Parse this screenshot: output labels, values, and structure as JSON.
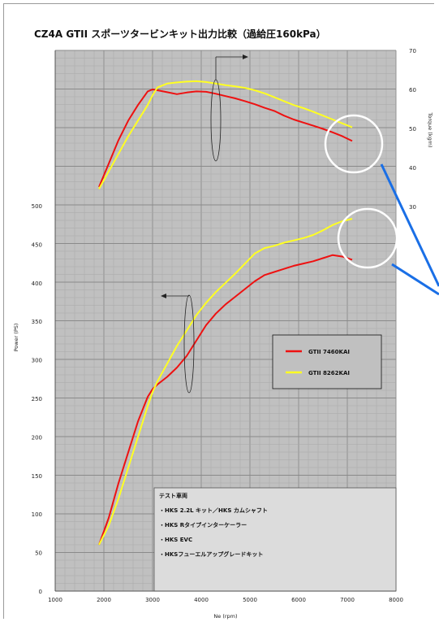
{
  "chart_data": {
    "type": "line",
    "title": "CZ4A GTII スポーツタービンキット出力比較（過給圧160kPa）",
    "xlabel": "Ne (rpm)",
    "ylabel_left": "Power (PS)",
    "ylabel_right": "Torque (kgm)",
    "xlim": [
      1000,
      8000
    ],
    "x_ticks": [
      "1000",
      "2000",
      "3000",
      "4000",
      "5000",
      "6000",
      "7000",
      "8000"
    ],
    "left_ylim": [
      0,
      500
    ],
    "left_ticks": [
      "0",
      "50",
      "100",
      "150",
      "200",
      "250",
      "300",
      "350",
      "400",
      "450",
      "500"
    ],
    "right_ylim": [
      30,
      70
    ],
    "right_ticks": [
      "30",
      "40",
      "50",
      "60",
      "70"
    ],
    "grid": true,
    "legend_position": "center-right",
    "series": [
      {
        "name": "GTII 7460KAI",
        "color": "#ee1111",
        "power": {
          "x": [
            1900,
            2100,
            2300,
            2500,
            2700,
            2900,
            3000,
            3100,
            3300,
            3500,
            3700,
            3900,
            4100,
            4300,
            4500,
            4700,
            4900,
            5100,
            5300,
            5500,
            5700,
            5900,
            6100,
            6300,
            6500,
            6700,
            6900,
            7100
          ],
          "y": [
            60,
            95,
            140,
            180,
            220,
            252,
            262,
            268,
            278,
            290,
            305,
            325,
            345,
            360,
            372,
            382,
            392,
            402,
            410,
            414,
            418,
            422,
            425,
            428,
            432,
            436,
            434,
            430
          ]
        },
        "torque": {
          "x": [
            1900,
            2100,
            2300,
            2500,
            2700,
            2900,
            3000,
            3100,
            3300,
            3500,
            3700,
            3900,
            4100,
            4300,
            4500,
            4700,
            4900,
            5100,
            5300,
            5500,
            5700,
            5900,
            6100,
            6300,
            6500,
            6700,
            6900,
            7100
          ],
          "y": [
            35.0,
            41.0,
            47.0,
            52.0,
            56.0,
            59.5,
            60.0,
            59.8,
            59.3,
            58.8,
            59.2,
            59.5,
            59.4,
            58.9,
            58.3,
            57.7,
            57.0,
            56.2,
            55.3,
            54.5,
            53.3,
            52.3,
            51.5,
            50.7,
            49.9,
            49.0,
            48.0,
            46.8
          ]
        }
      },
      {
        "name": "GTII 8262KAI",
        "color": "#ffff22",
        "power": {
          "x": [
            1900,
            2100,
            2300,
            2500,
            2700,
            2900,
            3000,
            3100,
            3300,
            3500,
            3700,
            3900,
            4100,
            4300,
            4500,
            4700,
            4900,
            5100,
            5300,
            5500,
            5700,
            5900,
            6100,
            6300,
            6500,
            6700,
            6900,
            7100
          ],
          "y": [
            60,
            85,
            120,
            160,
            200,
            240,
            258,
            272,
            295,
            318,
            338,
            358,
            374,
            388,
            400,
            412,
            425,
            438,
            445,
            448,
            452,
            455,
            458,
            462,
            468,
            475,
            480,
            483
          ]
        },
        "torque": {
          "x": [
            1900,
            2100,
            2300,
            2500,
            2700,
            2900,
            3000,
            3100,
            3300,
            3500,
            3700,
            3900,
            4100,
            4300,
            4500,
            4700,
            4900,
            5100,
            5300,
            5500,
            5700,
            5900,
            6100,
            6300,
            6500,
            6700,
            6900,
            7100
          ],
          "y": [
            34.5,
            39.0,
            43.5,
            48.0,
            52.0,
            56.0,
            58.5,
            60.5,
            61.5,
            61.8,
            62.0,
            62.1,
            61.9,
            61.5,
            61.1,
            60.8,
            60.4,
            59.8,
            59.0,
            58.0,
            57.0,
            56.0,
            55.2,
            54.3,
            53.3,
            52.3,
            51.3,
            50.3
          ]
        }
      }
    ],
    "annotations": {
      "test_vehicle_heading": "テスト車両",
      "test_vehicle_items": [
        "・HKS 2.2L キット／HKS カムシャフト",
        "・HKS Rタイプインターケーラー",
        "・HKS EVC",
        "・HKSフューエルアップグレードキット"
      ]
    }
  }
}
